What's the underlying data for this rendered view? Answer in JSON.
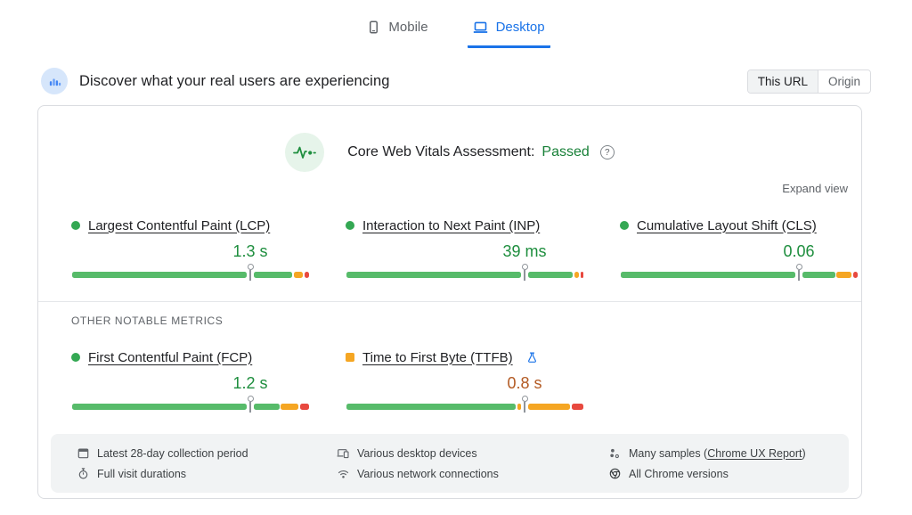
{
  "device_tabs": {
    "mobile_label": "Mobile",
    "desktop_label": "Desktop",
    "active": "Desktop"
  },
  "header": {
    "title": "Discover what your real users are experiencing",
    "scope_toggle": {
      "options": [
        "This URL",
        "Origin"
      ],
      "selected": "This URL"
    }
  },
  "assessment": {
    "title": "Core Web Vitals Assessment:",
    "status": "Passed",
    "expand_label": "Expand view"
  },
  "sections": {
    "other_metrics_label": "OTHER NOTABLE METRICS"
  },
  "colors": {
    "good": "#57bb6a",
    "needs_improvement": "#f5a623",
    "poor": "#e8493f",
    "accent_blue": "#1a73e8",
    "passed_green": "#188038",
    "value_good": "#1e8e3e",
    "value_ni": "#b35a23"
  },
  "metrics": {
    "lcp": {
      "label": "Largest Contentful Paint (LCP)",
      "value": "1.3 s",
      "rating": "good",
      "bar": {
        "good_pct": 93,
        "ni_pct": 4.5,
        "poor_pct": 2.5,
        "marker_pct": 75
      }
    },
    "inp": {
      "label": "Interaction to Next Paint (INP)",
      "value": "39 ms",
      "rating": "good",
      "bar": {
        "good_pct": 95.5,
        "ni_pct": 2.5,
        "poor_pct": 2,
        "marker_pct": 75
      }
    },
    "cls": {
      "label": "Cumulative Layout Shift (CLS)",
      "value": "0.06",
      "rating": "good",
      "bar": {
        "good_pct": 90.5,
        "ni_pct": 7,
        "poor_pct": 2.5,
        "marker_pct": 75
      }
    },
    "fcp": {
      "label": "First Contentful Paint (FCP)",
      "value": "1.2 s",
      "rating": "good",
      "bar": {
        "good_pct": 87.5,
        "ni_pct": 8,
        "poor_pct": 4.5,
        "marker_pct": 75
      }
    },
    "ttfb": {
      "label": "Time to First Byte (TTFB)",
      "value": "0.8 s",
      "rating": "needs-improvement",
      "experimental": true,
      "bar": {
        "good_pct": 71.5,
        "ni_pct": 23,
        "poor_pct": 5.5,
        "marker_pct": 75
      }
    }
  },
  "footer": {
    "items": [
      {
        "icon": "calendar-icon",
        "label": "Latest 28-day collection period"
      },
      {
        "icon": "stopwatch-icon",
        "label": "Full visit durations"
      },
      {
        "icon": "devices-icon",
        "label": "Various desktop devices"
      },
      {
        "icon": "wifi-icon",
        "label": "Various network connections"
      },
      {
        "icon": "samples-icon",
        "label_prefix": "Many samples (",
        "link": "Chrome UX Report",
        "label_suffix": ")"
      },
      {
        "icon": "chrome-icon",
        "label": "All Chrome versions"
      }
    ]
  }
}
